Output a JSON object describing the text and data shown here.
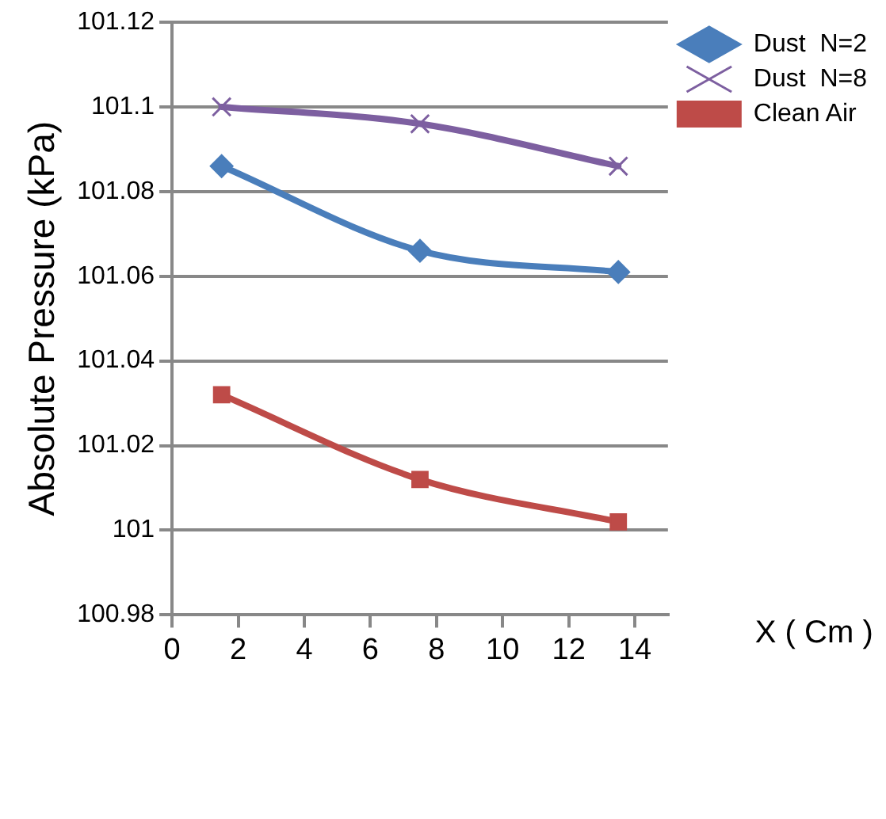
{
  "chart_data": {
    "type": "line",
    "ylabel": "Absolute Pressure (kPa)",
    "xlabel": "X ( Cm )",
    "x": [
      1.5,
      7.5,
      13.5
    ],
    "series": [
      {
        "name": "Dust  N=2",
        "color": "#4a7ebb",
        "marker": "diamond",
        "values": [
          101.086,
          101.066,
          101.061
        ]
      },
      {
        "name": "Dust  N=8",
        "color": "#7d5fa0",
        "marker": "cross",
        "values": [
          101.1,
          101.096,
          101.086
        ]
      },
      {
        "name": "Clean Air",
        "color": "#be4b48",
        "marker": "square",
        "values": [
          101.032,
          101.012,
          101.002
        ]
      }
    ],
    "xlim": [
      0,
      15
    ],
    "xticks": [
      0,
      2,
      4,
      6,
      8,
      10,
      12,
      14
    ],
    "ylim": [
      100.98,
      101.12
    ],
    "yticks": [
      100.98,
      101,
      101.02,
      101.04,
      101.06,
      101.08,
      101.1,
      101.12
    ],
    "grid": "y",
    "legend": "top right"
  }
}
